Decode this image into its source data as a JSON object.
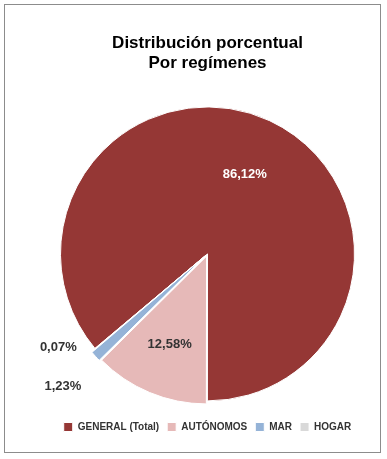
{
  "chart_data": {
    "type": "pie",
    "title": [
      "Distribución porcentual",
      "Por regímenes"
    ],
    "categories": [
      "GENERAL (Total)",
      "AUTÓNOMOS",
      "MAR",
      "HOGAR"
    ],
    "values": [
      86.12,
      12.58,
      1.23,
      0.07
    ],
    "value_labels": [
      "86,12%",
      "12,58%",
      "1,23%",
      "0,07%"
    ],
    "colors": [
      "#953735",
      "#e6b9b8",
      "#95b3d7",
      "#d9d9d9"
    ],
    "data_labels": true,
    "legend": "bottom"
  }
}
